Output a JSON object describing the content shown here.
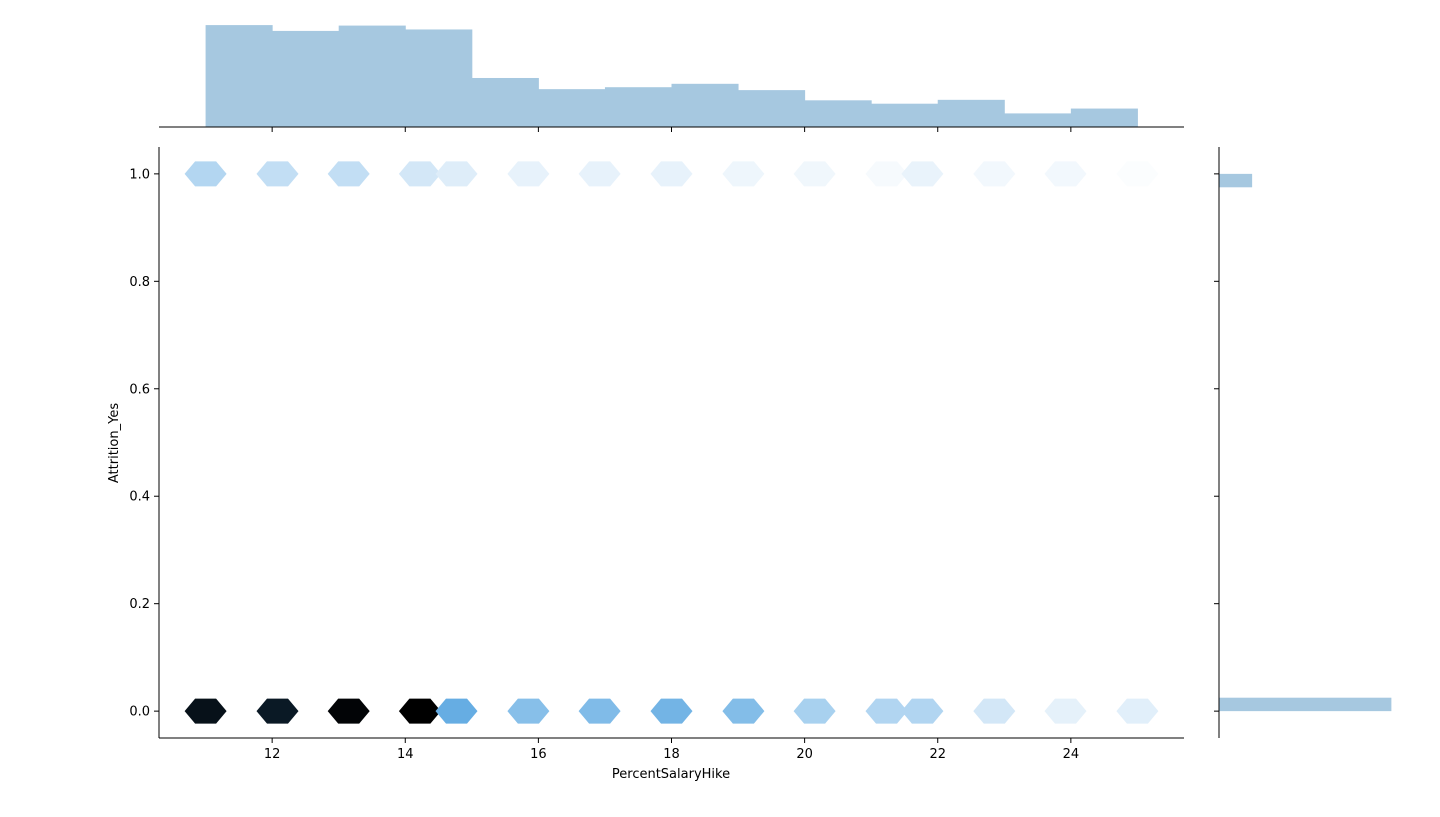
{
  "chart_data": {
    "type": "heatmap",
    "subtype": "hexbin-jointplot",
    "title": "",
    "xlabel": "PercentSalaryHike",
    "ylabel": "Attrition_Yes",
    "xlim": [
      10.3,
      25.7
    ],
    "ylim": [
      -0.05,
      1.05
    ],
    "x_ticks": [
      12,
      14,
      16,
      18,
      20,
      22,
      24
    ],
    "y_ticks": [
      0.0,
      0.2,
      0.4,
      0.6,
      0.8,
      1.0
    ],
    "grid": false,
    "colors": {
      "marginal": "#a6c8e0",
      "hex_scale_low": "#ffffff",
      "hex_scale_mid": "#3b96db",
      "hex_scale_high": "#000000",
      "axis": "#000000"
    },
    "hexbins": [
      {
        "x": 11.0,
        "y": 1.0,
        "count": 41
      },
      {
        "x": 12.08,
        "y": 1.0,
        "count": 33
      },
      {
        "x": 13.15,
        "y": 1.0,
        "count": 33
      },
      {
        "x": 14.22,
        "y": 1.0,
        "count": 24
      },
      {
        "x": 14.77,
        "y": 1.0,
        "count": 18
      },
      {
        "x": 15.85,
        "y": 1.0,
        "count": 13
      },
      {
        "x": 16.92,
        "y": 1.0,
        "count": 13
      },
      {
        "x": 18.0,
        "y": 1.0,
        "count": 13
      },
      {
        "x": 19.08,
        "y": 1.0,
        "count": 9
      },
      {
        "x": 20.15,
        "y": 1.0,
        "count": 8
      },
      {
        "x": 21.23,
        "y": 1.0,
        "count": 5
      },
      {
        "x": 21.77,
        "y": 1.0,
        "count": 12
      },
      {
        "x": 22.85,
        "y": 1.0,
        "count": 7
      },
      {
        "x": 23.92,
        "y": 1.0,
        "count": 7
      },
      {
        "x": 25.0,
        "y": 1.0,
        "count": 2
      },
      {
        "x": 11.0,
        "y": 0.0,
        "count": 169
      },
      {
        "x": 12.08,
        "y": 0.0,
        "count": 165
      },
      {
        "x": 13.15,
        "y": 0.0,
        "count": 175
      },
      {
        "x": 14.22,
        "y": 0.0,
        "count": 177
      },
      {
        "x": 14.77,
        "y": 0.0,
        "count": 83
      },
      {
        "x": 15.85,
        "y": 0.0,
        "count": 65
      },
      {
        "x": 16.92,
        "y": 0.0,
        "count": 69
      },
      {
        "x": 18.0,
        "y": 0.0,
        "count": 76
      },
      {
        "x": 19.08,
        "y": 0.0,
        "count": 67
      },
      {
        "x": 20.15,
        "y": 0.0,
        "count": 47
      },
      {
        "x": 21.23,
        "y": 0.0,
        "count": 42
      },
      {
        "x": 21.77,
        "y": 0.0,
        "count": 42
      },
      {
        "x": 22.85,
        "y": 0.0,
        "count": 24
      },
      {
        "x": 23.92,
        "y": 0.0,
        "count": 14
      },
      {
        "x": 25.0,
        "y": 0.0,
        "count": 16
      }
    ],
    "count_max": 177,
    "marginal_x": {
      "bin_edges": [
        11,
        12,
        13,
        14,
        15,
        16,
        17,
        18,
        19,
        20,
        21,
        22,
        23,
        24,
        25
      ],
      "counts": [
        210,
        198,
        209,
        201,
        101,
        78,
        82,
        89,
        76,
        55,
        48,
        56,
        28,
        38
      ]
    },
    "marginal_y": {
      "bins": [
        {
          "y0": 0.0,
          "y1": 0.025,
          "count": 1233
        },
        {
          "y0": 0.975,
          "y1": 1.0,
          "count": 237
        }
      ]
    }
  }
}
